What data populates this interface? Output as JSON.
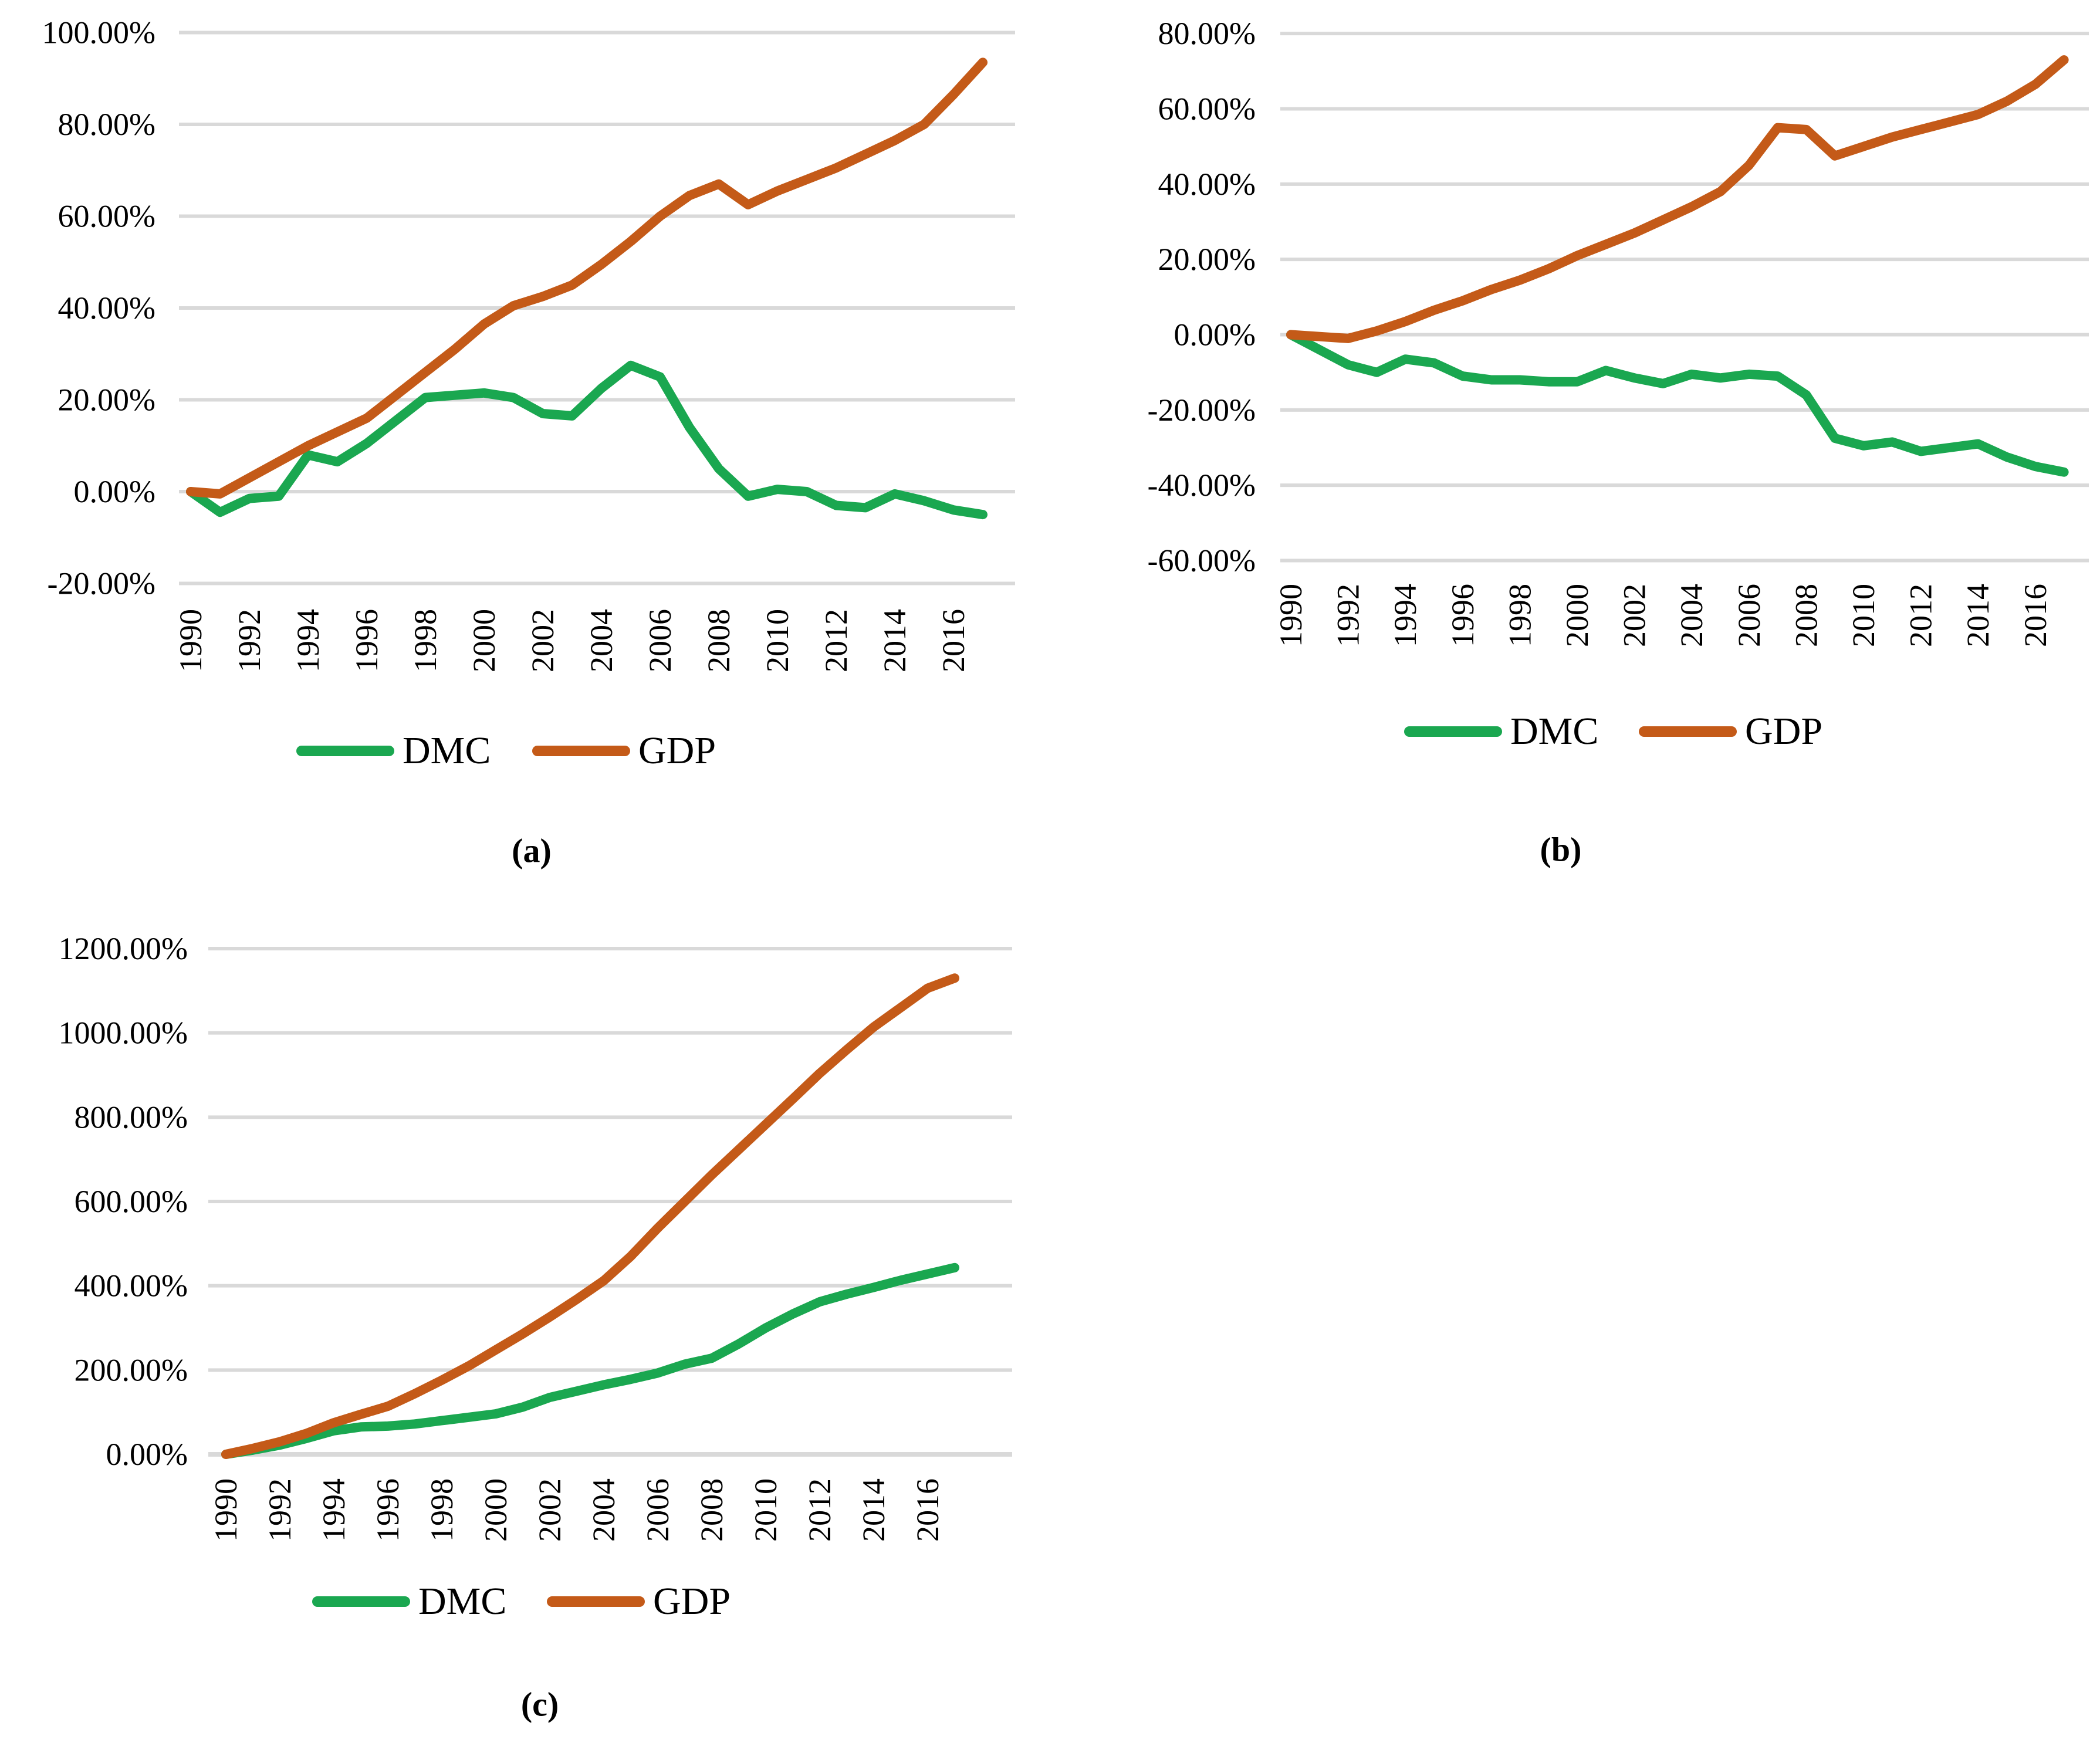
{
  "figure": {
    "background": "#FFFFFF",
    "gridline_color": "#D9D9D9",
    "text_color": "#000000"
  },
  "chart_data": [
    {
      "id": "a",
      "type": "line",
      "caption": "(a)",
      "x": [
        1990,
        1991,
        1992,
        1993,
        1994,
        1995,
        1996,
        1997,
        1998,
        1999,
        2000,
        2001,
        2002,
        2003,
        2004,
        2005,
        2006,
        2007,
        2008,
        2009,
        2010,
        2011,
        2012,
        2013,
        2014,
        2015,
        2016,
        2017
      ],
      "x_tick_labels": [
        "1990",
        "1992",
        "1994",
        "1996",
        "1998",
        "2000",
        "2002",
        "2004",
        "2006",
        "2008",
        "2010",
        "2012",
        "2014",
        "2016"
      ],
      "y_axis": {
        "min": -20,
        "max": 100,
        "step": 20,
        "tick_labels": [
          "100.00%",
          "80.00%",
          "60.00%",
          "40.00%",
          "20.00%",
          "0.00%",
          "-20.00%"
        ]
      },
      "legend_position": "bottom",
      "grid": true,
      "series": [
        {
          "name": "DMC",
          "color": "#1AA750",
          "values": [
            0,
            -4.5,
            -1.5,
            -1,
            8,
            6.5,
            10.5,
            15.5,
            20.5,
            21,
            21.5,
            20.5,
            17,
            16.5,
            22.5,
            27.5,
            25,
            14,
            5,
            -1,
            0.5,
            0,
            -3,
            -3.5,
            -0.5,
            -2,
            -4,
            -5
          ]
        },
        {
          "name": "GDP",
          "color": "#C45A18",
          "values": [
            0,
            -0.5,
            3,
            6.5,
            10,
            13,
            16,
            21,
            26,
            31,
            36.5,
            40.5,
            42.5,
            45,
            49.5,
            54.5,
            60,
            64.5,
            67,
            62.5,
            65.5,
            68,
            70.5,
            73.5,
            76.5,
            80,
            86.5,
            93.5
          ]
        }
      ]
    },
    {
      "id": "b",
      "type": "line",
      "caption": "(b)",
      "x": [
        1990,
        1991,
        1992,
        1993,
        1994,
        1995,
        1996,
        1997,
        1998,
        1999,
        2000,
        2001,
        2002,
        2003,
        2004,
        2005,
        2006,
        2007,
        2008,
        2009,
        2010,
        2011,
        2012,
        2013,
        2014,
        2015,
        2016,
        2017
      ],
      "x_tick_labels": [
        "1990",
        "1992",
        "1994",
        "1996",
        "1998",
        "2000",
        "2002",
        "2004",
        "2006",
        "2008",
        "2010",
        "2012",
        "2014",
        "2016"
      ],
      "y_axis": {
        "min": -60,
        "max": 80,
        "step": 20,
        "tick_labels": [
          "80.00%",
          "60.00%",
          "40.00%",
          "20.00%",
          "0.00%",
          "-20.00%",
          "-40.00%",
          "-60.00%"
        ]
      },
      "legend_position": "bottom",
      "grid": true,
      "series": [
        {
          "name": "DMC",
          "color": "#1AA750",
          "values": [
            0,
            -4,
            -8,
            -10,
            -6.5,
            -7.5,
            -11,
            -12,
            -12,
            -12.5,
            -12.5,
            -9.5,
            -11.5,
            -13,
            -10.5,
            -11.5,
            -10.5,
            -11,
            -16,
            -27.5,
            -29.5,
            -28.5,
            -31,
            -30,
            -29,
            -32.5,
            -35,
            -36.5
          ]
        },
        {
          "name": "GDP",
          "color": "#C45A18",
          "values": [
            0,
            -0.5,
            -1,
            1,
            3.5,
            6.5,
            9,
            12,
            14.5,
            17.5,
            21,
            24,
            27,
            30.5,
            34,
            38,
            45,
            55,
            54.5,
            47.5,
            50,
            52.5,
            54.5,
            56.5,
            58.5,
            62,
            66.5,
            73
          ]
        }
      ]
    },
    {
      "id": "c",
      "type": "line",
      "caption": "(c)",
      "x": [
        1990,
        1991,
        1992,
        1993,
        1994,
        1995,
        1996,
        1997,
        1998,
        1999,
        2000,
        2001,
        2002,
        2003,
        2004,
        2005,
        2006,
        2007,
        2008,
        2009,
        2010,
        2011,
        2012,
        2013,
        2014,
        2015,
        2016,
        2017
      ],
      "x_tick_labels": [
        "1990",
        "1992",
        "1994",
        "1996",
        "1998",
        "2000",
        "2002",
        "2004",
        "2006",
        "2008",
        "2010",
        "2012",
        "2014",
        "2016"
      ],
      "y_axis": {
        "min": 0,
        "max": 1200,
        "step": 200,
        "tick_labels": [
          "1200.00%",
          "1000.00%",
          "800.00%",
          "600.00%",
          "400.00%",
          "200.00%",
          "0.00%"
        ]
      },
      "legend_position": "bottom",
      "grid": true,
      "series": [
        {
          "name": "DMC",
          "color": "#1AA750",
          "values": [
            0,
            10,
            22,
            38,
            56,
            65,
            67,
            72,
            80,
            88,
            96,
            112,
            135,
            150,
            165,
            178,
            193,
            214,
            228,
            262,
            300,
            333,
            362,
            380,
            396,
            413,
            428,
            443
          ]
        },
        {
          "name": "GDP",
          "color": "#C45A18",
          "values": [
            0,
            14,
            30,
            50,
            75,
            95,
            114,
            144,
            176,
            210,
            248,
            286,
            326,
            368,
            412,
            470,
            537,
            600,
            663,
            723,
            783,
            843,
            904,
            960,
            1014,
            1060,
            1106,
            1130
          ]
        }
      ]
    }
  ]
}
